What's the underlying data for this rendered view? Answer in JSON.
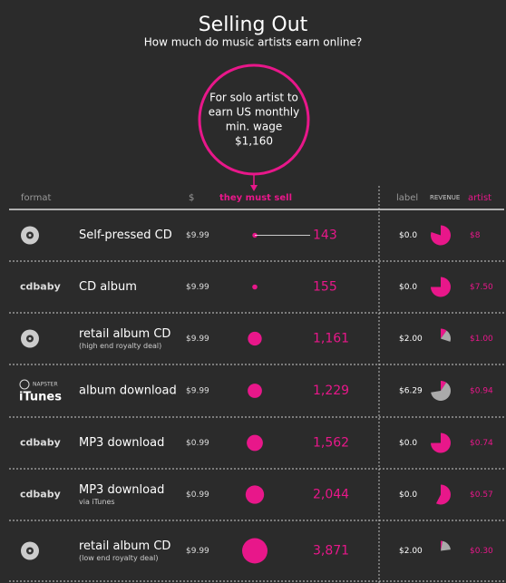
{
  "header": {
    "title": "Selling Out",
    "subtitle": "How much do music artists earn online?",
    "callout": [
      "For solo artist to",
      "earn US monthly",
      "min. wage",
      "$1,160"
    ]
  },
  "columns": {
    "format": "format",
    "price": "$",
    "sell": "they must sell",
    "label": "label",
    "revenue": "REVENUE",
    "artist": "artist"
  },
  "rows": [
    {
      "format": "Self-pressed CD",
      "price": "$9.99",
      "sell": "143",
      "label": "$0.0",
      "artist": "$8"
    },
    {
      "logo": [
        "cdbaby"
      ],
      "format": "CD album",
      "price": "$9.99",
      "sell": "155",
      "label": "$0.0",
      "artist": "$7.50"
    },
    {
      "format": "retail album CD",
      "note": "(high end royalty deal)",
      "price": "$9.99",
      "sell": "1,161",
      "label": "$2.00",
      "artist": "$1.00"
    },
    {
      "logo": [
        "NAPSTER",
        "iTunes"
      ],
      "format": "album download",
      "price": "$9.99",
      "sell": "1,229",
      "label": "$6.29",
      "artist": "$0.94"
    },
    {
      "logo": [
        "cdbaby"
      ],
      "format": "MP3 download",
      "price": "$0.99",
      "sell": "1,562",
      "label": "$0.0",
      "artist": "$0.74"
    },
    {
      "logo": [
        "cdbaby"
      ],
      "format": "MP3 download",
      "note": "via iTunes",
      "price": "$0.99",
      "sell": "2,044",
      "label": "$0.0",
      "artist": "$0.57"
    },
    {
      "format": "retail album CD",
      "note": "(low end royalty deal)",
      "price": "$9.99",
      "sell": "3,871",
      "label": "$2.00",
      "artist": "$0.30"
    }
  ]
}
